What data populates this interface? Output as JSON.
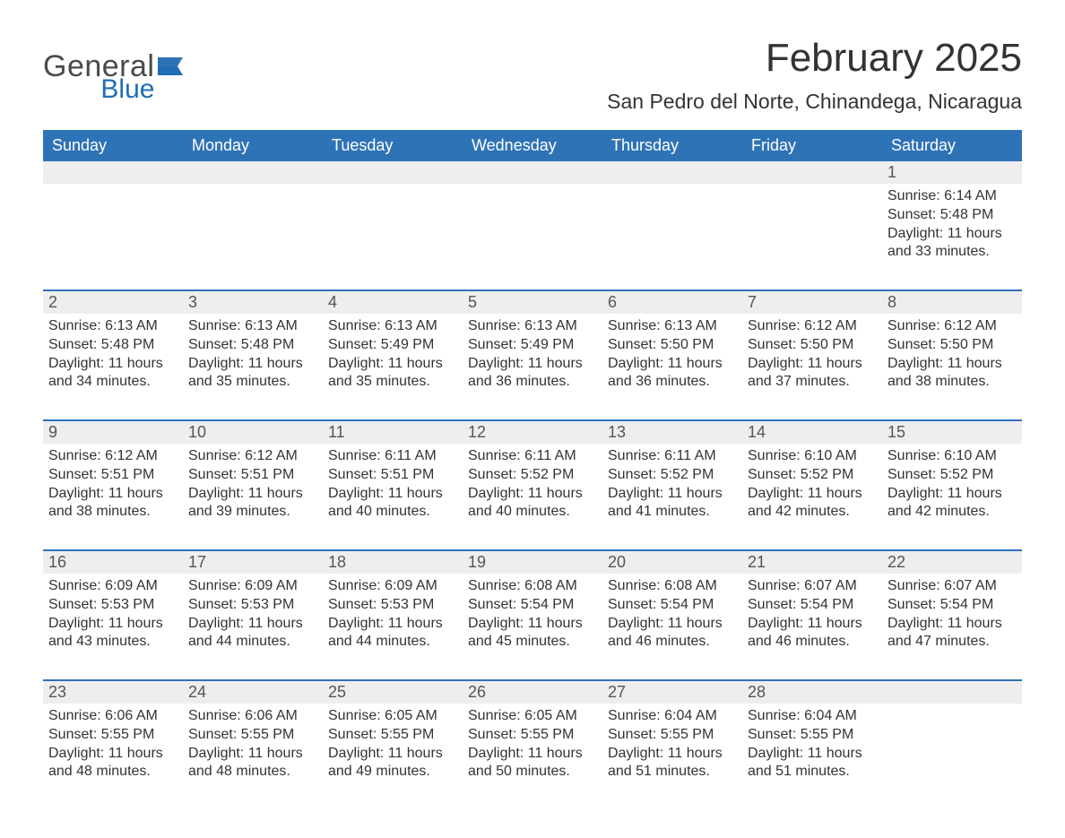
{
  "logo": {
    "general": "General",
    "blue": "Blue"
  },
  "title": "February 2025",
  "location": "San Pedro del Norte, Chinandega, Nicaragua",
  "colors": {
    "header_bg": "#2f73b7",
    "header_text": "#ffffff",
    "daynum_bg": "#eeeeee",
    "week_border": "#2f73b7",
    "body_text": "#333333",
    "logo_gray": "#4a4a4a",
    "logo_blue": "#1f6db5"
  },
  "dow": [
    "Sunday",
    "Monday",
    "Tuesday",
    "Wednesday",
    "Thursday",
    "Friday",
    "Saturday"
  ],
  "weeks": [
    [
      null,
      null,
      null,
      null,
      null,
      null,
      {
        "n": "1",
        "sr": "6:14 AM",
        "ss": "5:48 PM",
        "dl": "11 hours and 33 minutes."
      }
    ],
    [
      {
        "n": "2",
        "sr": "6:13 AM",
        "ss": "5:48 PM",
        "dl": "11 hours and 34 minutes."
      },
      {
        "n": "3",
        "sr": "6:13 AM",
        "ss": "5:48 PM",
        "dl": "11 hours and 35 minutes."
      },
      {
        "n": "4",
        "sr": "6:13 AM",
        "ss": "5:49 PM",
        "dl": "11 hours and 35 minutes."
      },
      {
        "n": "5",
        "sr": "6:13 AM",
        "ss": "5:49 PM",
        "dl": "11 hours and 36 minutes."
      },
      {
        "n": "6",
        "sr": "6:13 AM",
        "ss": "5:50 PM",
        "dl": "11 hours and 36 minutes."
      },
      {
        "n": "7",
        "sr": "6:12 AM",
        "ss": "5:50 PM",
        "dl": "11 hours and 37 minutes."
      },
      {
        "n": "8",
        "sr": "6:12 AM",
        "ss": "5:50 PM",
        "dl": "11 hours and 38 minutes."
      }
    ],
    [
      {
        "n": "9",
        "sr": "6:12 AM",
        "ss": "5:51 PM",
        "dl": "11 hours and 38 minutes."
      },
      {
        "n": "10",
        "sr": "6:12 AM",
        "ss": "5:51 PM",
        "dl": "11 hours and 39 minutes."
      },
      {
        "n": "11",
        "sr": "6:11 AM",
        "ss": "5:51 PM",
        "dl": "11 hours and 40 minutes."
      },
      {
        "n": "12",
        "sr": "6:11 AM",
        "ss": "5:52 PM",
        "dl": "11 hours and 40 minutes."
      },
      {
        "n": "13",
        "sr": "6:11 AM",
        "ss": "5:52 PM",
        "dl": "11 hours and 41 minutes."
      },
      {
        "n": "14",
        "sr": "6:10 AM",
        "ss": "5:52 PM",
        "dl": "11 hours and 42 minutes."
      },
      {
        "n": "15",
        "sr": "6:10 AM",
        "ss": "5:52 PM",
        "dl": "11 hours and 42 minutes."
      }
    ],
    [
      {
        "n": "16",
        "sr": "6:09 AM",
        "ss": "5:53 PM",
        "dl": "11 hours and 43 minutes."
      },
      {
        "n": "17",
        "sr": "6:09 AM",
        "ss": "5:53 PM",
        "dl": "11 hours and 44 minutes."
      },
      {
        "n": "18",
        "sr": "6:09 AM",
        "ss": "5:53 PM",
        "dl": "11 hours and 44 minutes."
      },
      {
        "n": "19",
        "sr": "6:08 AM",
        "ss": "5:54 PM",
        "dl": "11 hours and 45 minutes."
      },
      {
        "n": "20",
        "sr": "6:08 AM",
        "ss": "5:54 PM",
        "dl": "11 hours and 46 minutes."
      },
      {
        "n": "21",
        "sr": "6:07 AM",
        "ss": "5:54 PM",
        "dl": "11 hours and 46 minutes."
      },
      {
        "n": "22",
        "sr": "6:07 AM",
        "ss": "5:54 PM",
        "dl": "11 hours and 47 minutes."
      }
    ],
    [
      {
        "n": "23",
        "sr": "6:06 AM",
        "ss": "5:55 PM",
        "dl": "11 hours and 48 minutes."
      },
      {
        "n": "24",
        "sr": "6:06 AM",
        "ss": "5:55 PM",
        "dl": "11 hours and 48 minutes."
      },
      {
        "n": "25",
        "sr": "6:05 AM",
        "ss": "5:55 PM",
        "dl": "11 hours and 49 minutes."
      },
      {
        "n": "26",
        "sr": "6:05 AM",
        "ss": "5:55 PM",
        "dl": "11 hours and 50 minutes."
      },
      {
        "n": "27",
        "sr": "6:04 AM",
        "ss": "5:55 PM",
        "dl": "11 hours and 51 minutes."
      },
      {
        "n": "28",
        "sr": "6:04 AM",
        "ss": "5:55 PM",
        "dl": "11 hours and 51 minutes."
      },
      null
    ]
  ],
  "labels": {
    "sunrise": "Sunrise: ",
    "sunset": "Sunset: ",
    "daylight": "Daylight: "
  }
}
